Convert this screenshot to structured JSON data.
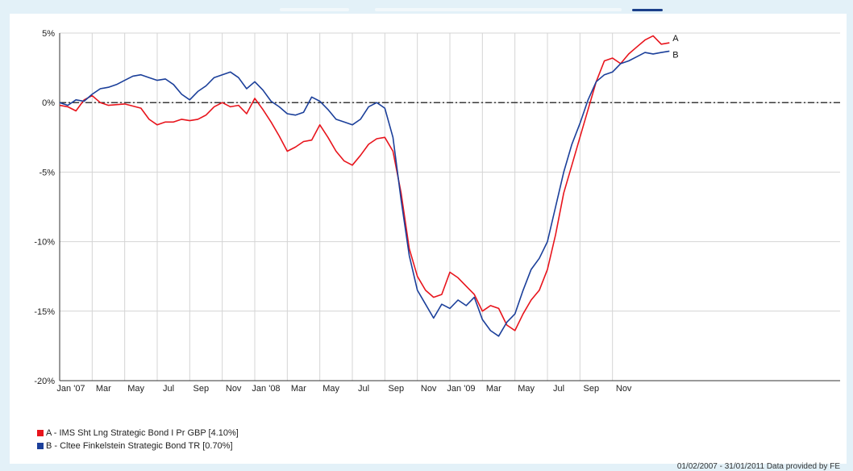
{
  "colors": {
    "background": "#e3f1f8",
    "series_a": "#e8141c",
    "series_b": "#1b3f9a",
    "grid": "#d4d4d4",
    "zero_line": "#000000"
  },
  "legend": {
    "items": [
      {
        "label": "A - IMS Sht Lng Strategic Bond I Pr GBP [4.10%]",
        "color": "#e8141c"
      },
      {
        "label": "B - Cltee Finkelstein Strategic Bond TR [0.70%]",
        "color": "#1b3f9a"
      }
    ]
  },
  "source_text": "01/02/2007 - 31/01/2011 Data provided by FE",
  "chart_data": {
    "type": "line",
    "title": "",
    "xlabel": "",
    "ylabel": "",
    "ylim": [
      -20,
      5
    ],
    "y_ticks": [
      {
        "value": 5,
        "label": "5%"
      },
      {
        "value": 0,
        "label": "0%"
      },
      {
        "value": -5,
        "label": "-5%"
      },
      {
        "value": -10,
        "label": "-10%"
      },
      {
        "value": -15,
        "label": "-15%"
      },
      {
        "value": -20,
        "label": "-20%"
      }
    ],
    "x_range": [
      0,
      48
    ],
    "x_ticks": [
      {
        "value": 0,
        "label": "Jan '07"
      },
      {
        "value": 2,
        "label": "Mar"
      },
      {
        "value": 4,
        "label": "May"
      },
      {
        "value": 6,
        "label": "Jul"
      },
      {
        "value": 8,
        "label": "Sep"
      },
      {
        "value": 10,
        "label": "Nov"
      },
      {
        "value": 12,
        "label": "Jan '08"
      },
      {
        "value": 14,
        "label": "Mar"
      },
      {
        "value": 16,
        "label": "May"
      },
      {
        "value": 18,
        "label": "Jul"
      },
      {
        "value": 20,
        "label": "Sep"
      },
      {
        "value": 22,
        "label": "Nov"
      },
      {
        "value": 24,
        "label": "Jan '09"
      },
      {
        "value": 26,
        "label": "Mar"
      },
      {
        "value": 28,
        "label": "May"
      },
      {
        "value": 30,
        "label": "Jul"
      },
      {
        "value": 32,
        "label": "Sep"
      },
      {
        "value": 34,
        "label": "Nov"
      }
    ],
    "grid": true,
    "zero_line": true,
    "series": [
      {
        "name": "A",
        "color": "#e8141c",
        "end_label": "A",
        "points": [
          [
            0,
            -0.2
          ],
          [
            0.5,
            -0.3
          ],
          [
            1,
            -0.6
          ],
          [
            1.5,
            0.2
          ],
          [
            2,
            0.5
          ],
          [
            2.5,
            0.0
          ],
          [
            3,
            -0.2
          ],
          [
            4,
            -0.1
          ],
          [
            5,
            -0.4
          ],
          [
            5.5,
            -1.2
          ],
          [
            6,
            -1.6
          ],
          [
            6.5,
            -1.4
          ],
          [
            7,
            -1.4
          ],
          [
            7.5,
            -1.2
          ],
          [
            8,
            -1.3
          ],
          [
            8.5,
            -1.2
          ],
          [
            9,
            -0.9
          ],
          [
            9.5,
            -0.3
          ],
          [
            10,
            0.0
          ],
          [
            10.5,
            -0.3
          ],
          [
            11,
            -0.2
          ],
          [
            11.5,
            -0.8
          ],
          [
            12,
            0.3
          ],
          [
            12.5,
            -0.5
          ],
          [
            13,
            -1.4
          ],
          [
            13.5,
            -2.4
          ],
          [
            14,
            -3.5
          ],
          [
            14.5,
            -3.2
          ],
          [
            15,
            -2.8
          ],
          [
            15.5,
            -2.7
          ],
          [
            16,
            -1.6
          ],
          [
            16.5,
            -2.5
          ],
          [
            17,
            -3.5
          ],
          [
            17.5,
            -4.2
          ],
          [
            18,
            -4.5
          ],
          [
            18.5,
            -3.8
          ],
          [
            19,
            -3.0
          ],
          [
            19.5,
            -2.6
          ],
          [
            20,
            -2.5
          ],
          [
            20.5,
            -3.5
          ],
          [
            21,
            -6.5
          ],
          [
            21.5,
            -10.5
          ],
          [
            22,
            -12.5
          ],
          [
            22.5,
            -13.5
          ],
          [
            23,
            -14.0
          ],
          [
            23.5,
            -13.8
          ],
          [
            24,
            -12.2
          ],
          [
            24.5,
            -12.6
          ],
          [
            25,
            -13.2
          ],
          [
            25.5,
            -13.8
          ],
          [
            26,
            -15.0
          ],
          [
            26.5,
            -14.6
          ],
          [
            27,
            -14.8
          ],
          [
            27.5,
            -16.0
          ],
          [
            28,
            -16.4
          ],
          [
            28.5,
            -15.2
          ],
          [
            29,
            -14.2
          ],
          [
            29.5,
            -13.5
          ],
          [
            30,
            -12.0
          ],
          [
            30.5,
            -9.5
          ],
          [
            31,
            -6.5
          ],
          [
            31.5,
            -4.5
          ],
          [
            32,
            -2.5
          ],
          [
            32.5,
            -0.5
          ],
          [
            33,
            1.5
          ],
          [
            33.5,
            3.0
          ],
          [
            34,
            3.2
          ],
          [
            34.5,
            2.8
          ],
          [
            35,
            3.5
          ],
          [
            35.5,
            4.0
          ],
          [
            36,
            4.5
          ],
          [
            36.5,
            4.8
          ],
          [
            37,
            4.2
          ],
          [
            37.5,
            4.3
          ]
        ]
      },
      {
        "name": "B",
        "color": "#1b3f9a",
        "end_label": "B",
        "points": [
          [
            0,
            0.0
          ],
          [
            0.5,
            -0.2
          ],
          [
            1,
            0.2
          ],
          [
            1.5,
            0.1
          ],
          [
            2,
            0.6
          ],
          [
            2.5,
            1.0
          ],
          [
            3,
            1.1
          ],
          [
            3.5,
            1.3
          ],
          [
            4,
            1.6
          ],
          [
            4.5,
            1.9
          ],
          [
            5,
            2.0
          ],
          [
            5.5,
            1.8
          ],
          [
            6,
            1.6
          ],
          [
            6.5,
            1.7
          ],
          [
            7,
            1.3
          ],
          [
            7.5,
            0.6
          ],
          [
            8,
            0.2
          ],
          [
            8.5,
            0.8
          ],
          [
            9,
            1.2
          ],
          [
            9.5,
            1.8
          ],
          [
            10,
            2.0
          ],
          [
            10.5,
            2.2
          ],
          [
            11,
            1.8
          ],
          [
            11.5,
            1.0
          ],
          [
            12,
            1.5
          ],
          [
            12.5,
            0.9
          ],
          [
            13,
            0.1
          ],
          [
            13.5,
            -0.3
          ],
          [
            14,
            -0.8
          ],
          [
            14.5,
            -0.9
          ],
          [
            15,
            -0.7
          ],
          [
            15.5,
            0.4
          ],
          [
            16,
            0.1
          ],
          [
            16.5,
            -0.5
          ],
          [
            17,
            -1.2
          ],
          [
            17.5,
            -1.4
          ],
          [
            18,
            -1.6
          ],
          [
            18.5,
            -1.2
          ],
          [
            19,
            -0.3
          ],
          [
            19.5,
            0.0
          ],
          [
            20,
            -0.4
          ],
          [
            20.5,
            -2.5
          ],
          [
            21,
            -7.0
          ],
          [
            21.5,
            -11.0
          ],
          [
            22,
            -13.5
          ],
          [
            22.5,
            -14.5
          ],
          [
            23,
            -15.5
          ],
          [
            23.5,
            -14.5
          ],
          [
            24,
            -14.8
          ],
          [
            24.5,
            -14.2
          ],
          [
            25,
            -14.6
          ],
          [
            25.5,
            -14.0
          ],
          [
            26,
            -15.6
          ],
          [
            26.5,
            -16.4
          ],
          [
            27,
            -16.8
          ],
          [
            27.5,
            -15.8
          ],
          [
            28,
            -15.2
          ],
          [
            28.5,
            -13.5
          ],
          [
            29,
            -12.0
          ],
          [
            29.5,
            -11.2
          ],
          [
            30,
            -10.0
          ],
          [
            30.5,
            -7.5
          ],
          [
            31,
            -5.0
          ],
          [
            31.5,
            -3.0
          ],
          [
            32,
            -1.5
          ],
          [
            32.5,
            0.2
          ],
          [
            33,
            1.5
          ],
          [
            33.5,
            2.0
          ],
          [
            34,
            2.2
          ],
          [
            34.5,
            2.8
          ],
          [
            35,
            3.0
          ],
          [
            35.5,
            3.3
          ],
          [
            36,
            3.6
          ],
          [
            36.5,
            3.5
          ],
          [
            37,
            3.6
          ],
          [
            37.5,
            3.7
          ]
        ]
      }
    ]
  }
}
